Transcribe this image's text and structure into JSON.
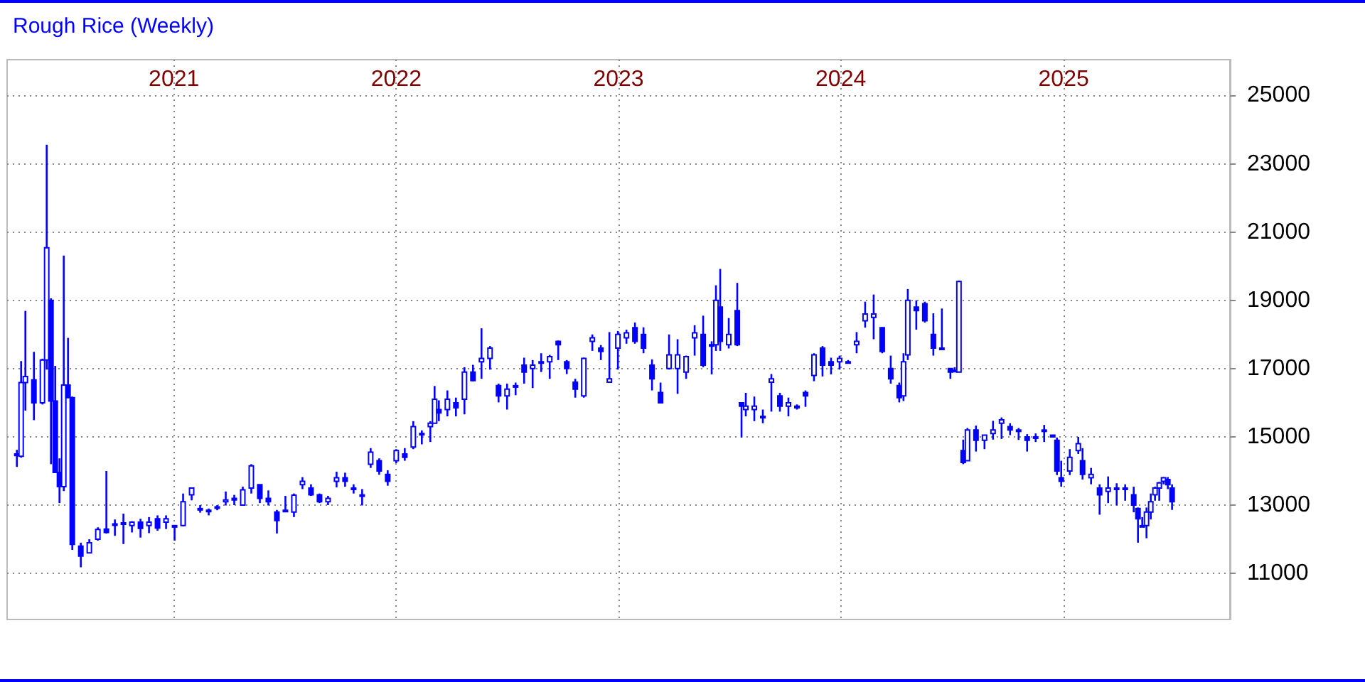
{
  "chart_data": {
    "type": "candlestick",
    "title": "Rough Rice (Weekly)",
    "x": [
      "2020-04-18",
      "2020-04-25",
      "2020-05-02",
      "2020-05-16",
      "2020-05-30",
      "2020-06-06",
      "2020-06-13",
      "2020-06-20",
      "2020-06-27",
      "2020-07-04",
      "2020-07-11",
      "2020-07-18",
      "2020-08-01",
      "2020-08-15",
      "2020-08-29",
      "2020-09-12",
      "2020-09-26",
      "2020-10-10",
      "2020-10-24",
      "2020-11-07",
      "2020-11-21",
      "2020-12-05",
      "2020-12-19",
      "2021-01-02",
      "2021-01-16",
      "2021-01-30",
      "2021-02-13",
      "2021-02-27",
      "2021-03-13",
      "2021-03-27",
      "2021-04-10",
      "2021-04-24",
      "2021-05-08",
      "2021-05-22",
      "2021-06-05",
      "2021-06-19",
      "2021-07-03",
      "2021-07-17",
      "2021-07-31",
      "2021-08-14",
      "2021-08-28",
      "2021-09-11",
      "2021-09-25",
      "2021-10-09",
      "2021-10-23",
      "2021-11-06",
      "2021-11-20",
      "2021-12-04",
      "2021-12-18",
      "2022-01-01",
      "2022-01-15",
      "2022-01-29",
      "2022-02-12",
      "2022-02-26",
      "2022-03-05",
      "2022-03-12",
      "2022-03-26",
      "2022-04-09",
      "2022-04-23",
      "2022-05-07",
      "2022-05-21",
      "2022-06-04",
      "2022-06-18",
      "2022-07-02",
      "2022-07-16",
      "2022-07-30",
      "2022-08-13",
      "2022-08-27",
      "2022-09-10",
      "2022-09-24",
      "2022-10-08",
      "2022-10-22",
      "2022-11-05",
      "2022-11-19",
      "2022-12-03",
      "2022-12-17",
      "2022-12-31",
      "2023-01-14",
      "2023-01-28",
      "2023-02-11",
      "2023-02-25",
      "2023-03-11",
      "2023-03-25",
      "2023-04-08",
      "2023-04-22",
      "2023-05-06",
      "2023-05-20",
      "2023-06-03",
      "2023-06-10",
      "2023-06-17",
      "2023-07-01",
      "2023-07-15",
      "2023-07-22",
      "2023-07-29",
      "2023-08-12",
      "2023-08-26",
      "2023-09-09",
      "2023-09-23",
      "2023-10-07",
      "2023-10-21",
      "2023-11-04",
      "2023-11-18",
      "2023-12-02",
      "2023-12-16",
      "2023-12-30",
      "2024-01-13",
      "2024-01-27",
      "2024-02-10",
      "2024-02-24",
      "2024-03-09",
      "2024-03-23",
      "2024-04-06",
      "2024-04-13",
      "2024-04-20",
      "2024-05-04",
      "2024-05-18",
      "2024-06-01",
      "2024-06-15",
      "2024-06-29",
      "2024-07-06",
      "2024-07-13",
      "2024-07-20",
      "2024-07-27",
      "2024-08-10",
      "2024-08-24",
      "2024-09-07",
      "2024-09-21",
      "2024-10-05",
      "2024-10-19",
      "2024-11-02",
      "2024-11-16",
      "2024-11-30",
      "2024-12-14",
      "2024-12-21",
      "2024-12-28",
      "2025-01-11",
      "2025-01-25",
      "2025-02-01",
      "2025-02-15",
      "2025-03-01",
      "2025-03-15",
      "2025-03-29",
      "2025-04-12",
      "2025-04-26",
      "2025-05-03",
      "2025-05-10",
      "2025-05-17",
      "2025-05-24",
      "2025-05-31",
      "2025-06-07",
      "2025-06-14",
      "2025-06-21",
      "2025-06-28"
    ],
    "series": [
      {
        "color": "#0000ff",
        "ohlc": [
          [
            14500,
            14620,
            14120,
            14450
          ],
          [
            14430,
            17220,
            14390,
            16590
          ],
          [
            16590,
            18690,
            15770,
            16770
          ],
          [
            16670,
            17490,
            15490,
            16000
          ],
          [
            16000,
            17290,
            15950,
            17250
          ],
          [
            17250,
            23560,
            16970,
            20540
          ],
          [
            19000,
            19060,
            14200,
            16050
          ],
          [
            16050,
            17080,
            13960,
            13960
          ],
          [
            13960,
            14370,
            13060,
            13540
          ],
          [
            13540,
            20310,
            13410,
            16520
          ],
          [
            16520,
            17900,
            16150,
            16150
          ],
          [
            16150,
            16180,
            11690,
            11850
          ],
          [
            11800,
            11900,
            11180,
            11510
          ],
          [
            11600,
            12000,
            11600,
            11900
          ],
          [
            12000,
            12350,
            11960,
            12290
          ],
          [
            12300,
            14000,
            12170,
            12200
          ],
          [
            12450,
            12580,
            12100,
            12430
          ],
          [
            12450,
            12750,
            11860,
            12480
          ],
          [
            12400,
            12530,
            12200,
            12500
          ],
          [
            12500,
            12600,
            12050,
            12320
          ],
          [
            12400,
            12650,
            12180,
            12500
          ],
          [
            12600,
            12700,
            12250,
            12330
          ],
          [
            12500,
            12700,
            12300,
            12600
          ],
          [
            12400,
            12420,
            11960,
            12380
          ],
          [
            12400,
            13340,
            12380,
            13100
          ],
          [
            13300,
            13500,
            13140,
            13500
          ],
          [
            12900,
            13000,
            12780,
            12900
          ],
          [
            12850,
            12900,
            12700,
            12850
          ],
          [
            12950,
            13000,
            12850,
            12950
          ],
          [
            13100,
            13400,
            12990,
            13150
          ],
          [
            13200,
            13300,
            13000,
            13150
          ],
          [
            13000,
            13540,
            13000,
            13450
          ],
          [
            13500,
            14200,
            13340,
            14150
          ],
          [
            13600,
            13600,
            13060,
            13200
          ],
          [
            13200,
            13430,
            12990,
            13100
          ],
          [
            12800,
            12860,
            12170,
            12550
          ],
          [
            12850,
            13270,
            12850,
            12850
          ],
          [
            12800,
            13340,
            12650,
            13290
          ],
          [
            13600,
            13820,
            13470,
            13700
          ],
          [
            13500,
            13610,
            13270,
            13300
          ],
          [
            13300,
            13340,
            13060,
            13100
          ],
          [
            13100,
            13270,
            13000,
            13200
          ],
          [
            13700,
            13980,
            13520,
            13800
          ],
          [
            13800,
            13950,
            13540,
            13700
          ],
          [
            13500,
            13610,
            13340,
            13500
          ],
          [
            13300,
            13470,
            12990,
            13300
          ],
          [
            14200,
            14670,
            14090,
            14550
          ],
          [
            14300,
            14370,
            13890,
            14000
          ],
          [
            13900,
            14020,
            13570,
            13700
          ],
          [
            14300,
            14640,
            14230,
            14600
          ],
          [
            14500,
            14670,
            14300,
            14400
          ],
          [
            14700,
            15460,
            14640,
            15300
          ],
          [
            15100,
            15190,
            14780,
            15100
          ],
          [
            15300,
            15460,
            14850,
            15400
          ],
          [
            15400,
            16490,
            15400,
            16100
          ],
          [
            15800,
            16070,
            15460,
            15700
          ],
          [
            15800,
            16360,
            15600,
            16100
          ],
          [
            16000,
            16150,
            15600,
            15850
          ],
          [
            16100,
            17040,
            15660,
            16900
          ],
          [
            16900,
            17110,
            16630,
            16650
          ],
          [
            17200,
            18180,
            16700,
            17300
          ],
          [
            17300,
            17660,
            16970,
            17600
          ],
          [
            16500,
            16560,
            16010,
            16200
          ],
          [
            16200,
            16560,
            15800,
            16400
          ],
          [
            16500,
            16590,
            16220,
            16500
          ],
          [
            17100,
            17320,
            16560,
            16900
          ],
          [
            17000,
            17250,
            16430,
            17100
          ],
          [
            17200,
            17450,
            16900,
            17200
          ],
          [
            17200,
            17400,
            16700,
            17350
          ],
          [
            17800,
            17820,
            17250,
            17700
          ],
          [
            17200,
            17250,
            16840,
            17000
          ],
          [
            16600,
            16700,
            16150,
            16400
          ],
          [
            16200,
            17320,
            16150,
            17300
          ],
          [
            17800,
            18000,
            17520,
            17900
          ],
          [
            17600,
            17690,
            17250,
            17500
          ],
          [
            16600,
            18070,
            16590,
            16700
          ],
          [
            17600,
            18100,
            16970,
            18000
          ],
          [
            17900,
            18140,
            17730,
            18050
          ],
          [
            18200,
            18350,
            17730,
            17800
          ],
          [
            18000,
            18210,
            17450,
            17600
          ],
          [
            17100,
            17270,
            16360,
            16700
          ],
          [
            16300,
            16590,
            15980,
            16000
          ],
          [
            17000,
            18000,
            16970,
            17400
          ],
          [
            17000,
            17860,
            16260,
            17400
          ],
          [
            16900,
            17380,
            16700,
            17350
          ],
          [
            17900,
            18270,
            17380,
            18050
          ],
          [
            18000,
            18550,
            17040,
            17100
          ],
          [
            17700,
            17800,
            16830,
            17700
          ],
          [
            17700,
            19440,
            17520,
            19000
          ],
          [
            18800,
            19920,
            17520,
            17800
          ],
          [
            17700,
            18480,
            17590,
            18000
          ],
          [
            18700,
            19510,
            17660,
            17700
          ],
          [
            16000,
            16000,
            14980,
            15900
          ],
          [
            15800,
            16290,
            15600,
            15900
          ],
          [
            15800,
            16180,
            15460,
            15900
          ],
          [
            15600,
            15800,
            15400,
            15600
          ],
          [
            16600,
            16840,
            15740,
            16700
          ],
          [
            16200,
            16290,
            15740,
            15900
          ],
          [
            15900,
            16150,
            15600,
            16000
          ],
          [
            15900,
            15950,
            15800,
            15850
          ],
          [
            16300,
            16360,
            15880,
            16200
          ],
          [
            16800,
            17450,
            16630,
            17400
          ],
          [
            17600,
            17660,
            16770,
            17100
          ],
          [
            17200,
            17320,
            16830,
            17100
          ],
          [
            17200,
            17380,
            16970,
            17300
          ],
          [
            17200,
            17250,
            17180,
            17200
          ],
          [
            17700,
            18070,
            17450,
            17800
          ],
          [
            18400,
            18960,
            18200,
            18600
          ],
          [
            18500,
            19170,
            17860,
            18600
          ],
          [
            18200,
            18210,
            17450,
            17500
          ],
          [
            17000,
            17380,
            16560,
            16700
          ],
          [
            16500,
            16590,
            16010,
            16150
          ],
          [
            16200,
            17450,
            16050,
            17200
          ],
          [
            17400,
            19330,
            17250,
            19000
          ],
          [
            18800,
            19000,
            18140,
            18700
          ],
          [
            18900,
            18960,
            18350,
            18400
          ],
          [
            18000,
            18620,
            17380,
            17600
          ],
          [
            17600,
            18760,
            17550,
            17600
          ],
          [
            17000,
            17000,
            16700,
            16900
          ],
          [
            16950,
            17040,
            16940,
            16950
          ],
          [
            16900,
            19580,
            16900,
            19550
          ],
          [
            14600,
            14920,
            14200,
            14250
          ],
          [
            14300,
            15260,
            14300,
            15200
          ],
          [
            15200,
            15330,
            14570,
            14900
          ],
          [
            14900,
            15050,
            14640,
            15050
          ],
          [
            15100,
            15470,
            14920,
            15200
          ],
          [
            15400,
            15570,
            14940,
            15500
          ],
          [
            15300,
            15400,
            15050,
            15200
          ],
          [
            15200,
            15260,
            14910,
            15200
          ],
          [
            15000,
            15080,
            14570,
            14900
          ],
          [
            15000,
            15100,
            14850,
            15000
          ],
          [
            15200,
            15350,
            14850,
            15200
          ],
          [
            15050,
            15050,
            14980,
            15000
          ],
          [
            14900,
            14980,
            13880,
            14000
          ],
          [
            13800,
            14300,
            13540,
            13700
          ],
          [
            14000,
            14640,
            13880,
            14400
          ],
          [
            14600,
            15000,
            14500,
            14800
          ],
          [
            14300,
            14670,
            13750,
            13900
          ],
          [
            13800,
            14090,
            13610,
            13900
          ],
          [
            13500,
            13610,
            12720,
            13300
          ],
          [
            13400,
            13840,
            13060,
            13500
          ],
          [
            13500,
            13640,
            12990,
            13500
          ],
          [
            13500,
            13610,
            13130,
            13500
          ],
          [
            13300,
            13540,
            12790,
            13000
          ],
          [
            12900,
            12930,
            11900,
            12600
          ],
          [
            12400,
            12650,
            12380,
            12400
          ],
          [
            12400,
            12930,
            12030,
            12800
          ],
          [
            12800,
            13340,
            12580,
            13100
          ],
          [
            13300,
            13540,
            13130,
            13500
          ],
          [
            13500,
            13680,
            13130,
            13650
          ],
          [
            13700,
            13820,
            13610,
            13800
          ],
          [
            13750,
            13820,
            13470,
            13600
          ],
          [
            13500,
            13610,
            12860,
            13100
          ]
        ]
      }
    ],
    "xlim": [
      "2020-04-02",
      "2025-10-01"
    ],
    "xticks": [
      {
        "value": "2021-01-01",
        "label": "2021"
      },
      {
        "value": "2022-01-01",
        "label": "2022"
      },
      {
        "value": "2023-01-01",
        "label": "2023"
      },
      {
        "value": "2024-01-01",
        "label": "2024"
      },
      {
        "value": "2025-01-01",
        "label": "2025"
      }
    ],
    "ylim": [
      9650,
      26050
    ],
    "yticks": [
      11000,
      13000,
      15000,
      17000,
      19000,
      21000,
      23000,
      25000
    ],
    "grid": true
  }
}
